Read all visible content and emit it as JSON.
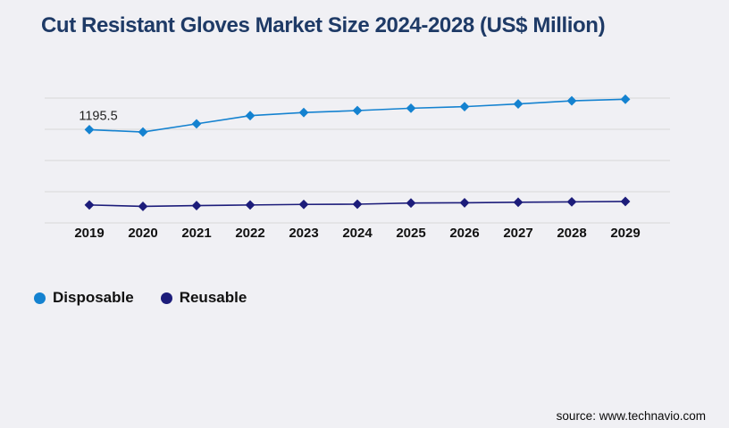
{
  "title": "Cut Resistant Gloves Market Size 2024-2028 (US$ Million)",
  "source": "source: www.technavio.com",
  "colors": {
    "background": "#f0f0f4",
    "title": "#1e3a66",
    "grid": "#d9d9d9",
    "axis_text": "#111111",
    "disposable": "#1482d0",
    "reusable": "#1c1c7a"
  },
  "legend": {
    "items": [
      {
        "label": "Disposable",
        "color_key": "disposable"
      },
      {
        "label": "Reusable",
        "color_key": "reusable"
      }
    ]
  },
  "chart_data": {
    "type": "line",
    "title": "Cut Resistant Gloves Market Size 2024-2028 (US$ Million)",
    "categories": [
      "2019",
      "2020",
      "2021",
      "2022",
      "2023",
      "2024",
      "2025",
      "2026",
      "2027",
      "2028",
      "2029"
    ],
    "series": [
      {
        "name": "Disposable",
        "color_key": "disposable",
        "marker": "diamond",
        "values": [
          1195.5,
          1165,
          1270,
          1375,
          1415,
          1440,
          1470,
          1490,
          1525,
          1565,
          1585
        ]
      },
      {
        "name": "Reusable",
        "color_key": "reusable",
        "marker": "diamond",
        "values": [
          230,
          212,
          222,
          230,
          237,
          240,
          255,
          258,
          265,
          270,
          275
        ]
      }
    ],
    "annotations": [
      {
        "text": "1195.5",
        "series_index": 0,
        "point_index": 0
      }
    ],
    "layout": {
      "ylim": [
        0,
        1600
      ],
      "grid_step": 400,
      "grid": "horizontal-only",
      "y_axis_labels_visible": false,
      "legend_position": "bottom-left",
      "note": "only first Disposable point carries a data label; all other values estimated from gridlines"
    }
  }
}
